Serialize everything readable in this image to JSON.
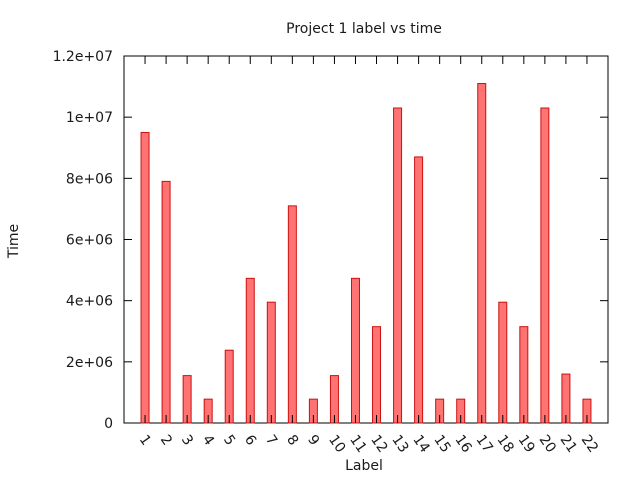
{
  "chart_data": {
    "type": "bar",
    "title": "Project 1 label vs time",
    "xlabel": "Label",
    "ylabel": "Time",
    "categories": [
      "1",
      "2",
      "3",
      "4",
      "5",
      "6",
      "7",
      "8",
      "9",
      "10",
      "11",
      "12",
      "13",
      "14",
      "15",
      "16",
      "17",
      "18",
      "19",
      "20",
      "21",
      "22"
    ],
    "values": [
      9500000,
      7900000,
      1550000,
      780000,
      2380000,
      4730000,
      3950000,
      7100000,
      780000,
      1550000,
      4730000,
      3150000,
      10300000,
      8700000,
      780000,
      780000,
      11100000,
      3950000,
      3150000,
      10300000,
      1600000,
      780000
    ],
    "ylim": [
      0,
      12000000
    ],
    "yticks": [
      {
        "value": 0,
        "label": "0"
      },
      {
        "value": 2000000,
        "label": "2e+06"
      },
      {
        "value": 4000000,
        "label": "4e+06"
      },
      {
        "value": 6000000,
        "label": "6e+06"
      },
      {
        "value": 8000000,
        "label": "8e+06"
      },
      {
        "value": 10000000,
        "label": "1e+07"
      },
      {
        "value": 12000000,
        "label": "1.2e+07"
      }
    ],
    "grid": false,
    "legend": "none",
    "colors": {
      "bar_fill": "#ff7373",
      "bar_stroke": "#cc1111"
    }
  }
}
